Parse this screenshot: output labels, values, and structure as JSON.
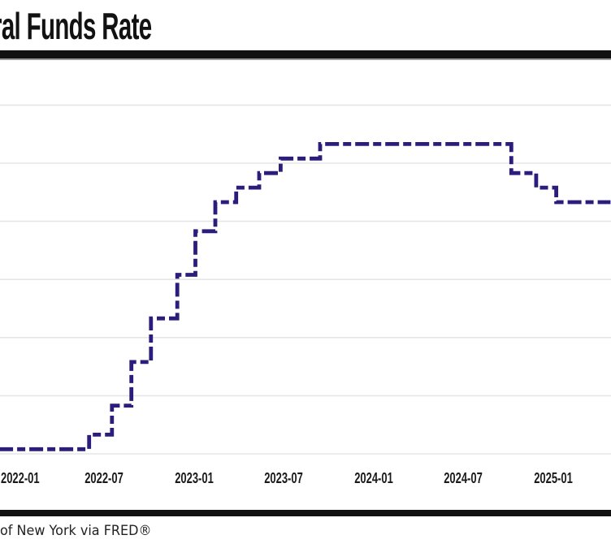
{
  "header": {
    "title_visible": "ral Funds Rate"
  },
  "footer": {
    "source_visible": "of New York via FRED®"
  },
  "colors": {
    "line": "#2a1d7c",
    "gridline": "#e6e6e6",
    "divider_bar": "#121212",
    "title_text": "#121212",
    "axis_label_text": "#1a1a1a",
    "source_text": "#222222"
  },
  "chart_data": {
    "type": "line",
    "subtype": "step",
    "dashed": true,
    "title": "ral Funds Rate",
    "xlabel": "",
    "ylabel": "",
    "legend_position": "none",
    "grid": "horizontal-only",
    "y_axis_labels_visible": false,
    "ylim": [
      0,
      6.8
    ],
    "y_gridlines": [
      0,
      1,
      2,
      3,
      4,
      5,
      6
    ],
    "x_ticks": [
      "2022-01",
      "2022-07",
      "2023-01",
      "2023-07",
      "2024-01",
      "2024-07",
      "2025-01"
    ],
    "x_start": "2021-12-01",
    "x_end": "2025-04-26",
    "line_color": "#2a1d7c",
    "line_width": 4.8,
    "dash_pattern": [
      17,
      5,
      10,
      5
    ],
    "series": [
      {
        "name": "Federal Funds Rate (%)",
        "steps": [
          {
            "date": "2021-12-01",
            "value": 0.08
          },
          {
            "date": "2022-06-01",
            "value": 0.33
          },
          {
            "date": "2022-07-17",
            "value": 0.83
          },
          {
            "date": "2022-08-26",
            "value": 1.58
          },
          {
            "date": "2022-10-05",
            "value": 2.33
          },
          {
            "date": "2022-11-28",
            "value": 3.08
          },
          {
            "date": "2023-01-04",
            "value": 3.83
          },
          {
            "date": "2023-02-14",
            "value": 4.33
          },
          {
            "date": "2023-03-26",
            "value": 4.58
          },
          {
            "date": "2023-05-12",
            "value": 4.83
          },
          {
            "date": "2023-06-25",
            "value": 5.08
          },
          {
            "date": "2023-09-14",
            "value": 5.33
          },
          {
            "date": "2024-10-07",
            "value": 4.83
          },
          {
            "date": "2024-11-27",
            "value": 4.58
          },
          {
            "date": "2025-01-07",
            "value": 4.33
          }
        ]
      }
    ]
  }
}
